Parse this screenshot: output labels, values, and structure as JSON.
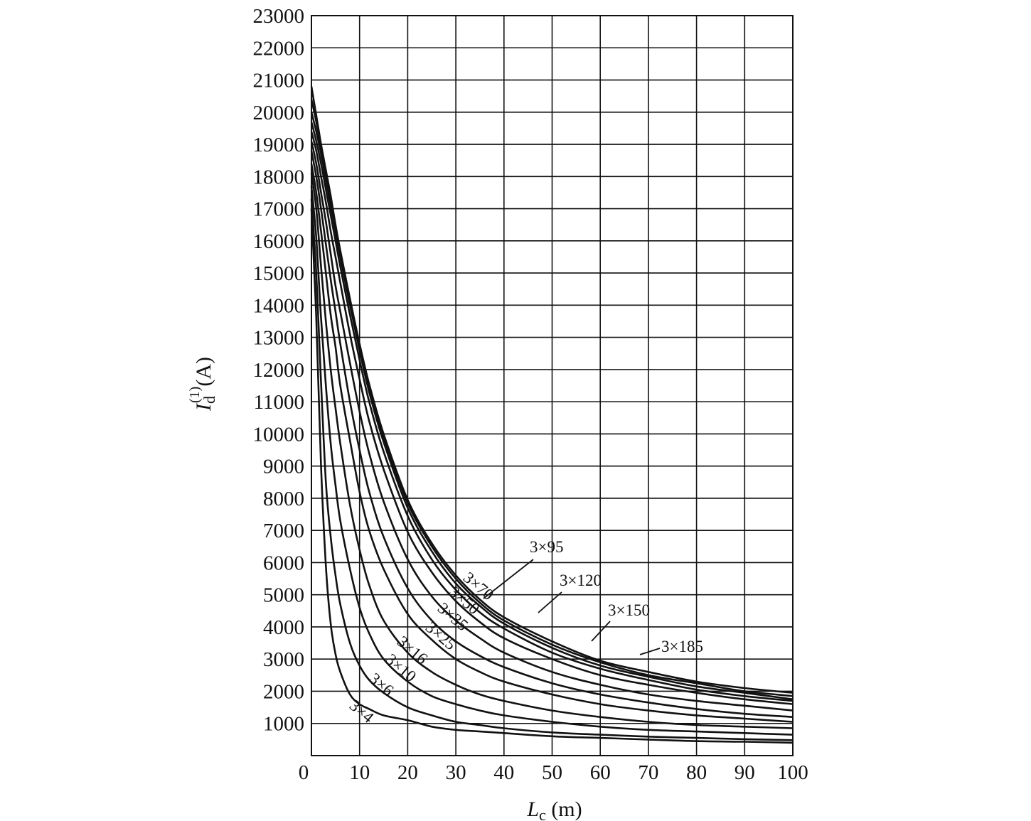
{
  "chart_data": {
    "type": "line",
    "xlabel": {
      "main": "L",
      "sub": "c",
      "unit": " (m)"
    },
    "ylabel": {
      "main": "I",
      "sub": "d",
      "sup": "(1)",
      "unit": "(A)"
    },
    "xlim": [
      0,
      100
    ],
    "ylim": [
      0,
      23000
    ],
    "grid": true,
    "x_ticks": [
      "0",
      "10",
      "20",
      "30",
      "40",
      "50",
      "60",
      "70",
      "80",
      "90",
      "100"
    ],
    "y_ticks": [
      "1000",
      "2000",
      "3000",
      "4000",
      "5000",
      "6000",
      "7000",
      "8000",
      "9000",
      "10000",
      "11000",
      "12000",
      "13000",
      "14000",
      "15000",
      "16000",
      "17000",
      "18000",
      "19000",
      "20000",
      "21000",
      "22000",
      "23000"
    ],
    "x": [
      0,
      1,
      2,
      3,
      4,
      5,
      6,
      8,
      10,
      12,
      15,
      20,
      25,
      30,
      35,
      40,
      50,
      60,
      70,
      80,
      90,
      100
    ],
    "series": [
      {
        "name": "3×4",
        "values": [
          17000,
          13600,
          9000,
          5900,
          4100,
          3150,
          2600,
          1900,
          1600,
          1450,
          1250,
          1100,
          900,
          800,
          750,
          700,
          600,
          550,
          500,
          450,
          430,
          400
        ]
      },
      {
        "name": "3×6",
        "values": [
          17300,
          15000,
          11600,
          8500,
          6800,
          5600,
          4700,
          3500,
          2800,
          2350,
          1950,
          1500,
          1250,
          1050,
          950,
          850,
          720,
          650,
          590,
          550,
          510,
          480
        ]
      },
      {
        "name": "3×10",
        "values": [
          17700,
          16100,
          13600,
          11500,
          9700,
          8400,
          7300,
          5800,
          4600,
          3800,
          3000,
          2300,
          1850,
          1600,
          1400,
          1250,
          1050,
          900,
          800,
          750,
          700,
          650
        ]
      },
      {
        "name": "3×16",
        "values": [
          18100,
          17000,
          15200,
          13500,
          12000,
          10800,
          9700,
          7800,
          6400,
          5300,
          4200,
          3200,
          2600,
          2200,
          1900,
          1700,
          1400,
          1200,
          1050,
          950,
          900,
          850
        ]
      },
      {
        "name": "3×25",
        "values": [
          18400,
          17500,
          16300,
          15000,
          13700,
          12700,
          11500,
          9800,
          8200,
          7000,
          5800,
          4400,
          3600,
          3000,
          2600,
          2300,
          1900,
          1600,
          1400,
          1250,
          1150,
          1050
        ]
      },
      {
        "name": "3×35",
        "values": [
          18800,
          18000,
          17000,
          15900,
          14800,
          13800,
          12800,
          11000,
          9500,
          8200,
          6800,
          5200,
          4200,
          3550,
          3100,
          2750,
          2250,
          1900,
          1650,
          1450,
          1300,
          1200
        ]
      },
      {
        "name": "3×50",
        "values": [
          19100,
          18400,
          17500,
          16600,
          15600,
          14600,
          13800,
          12200,
          10700,
          9400,
          7900,
          6100,
          4950,
          4200,
          3650,
          3200,
          2600,
          2200,
          1900,
          1700,
          1550,
          1400
        ]
      },
      {
        "name": "3×70",
        "values": [
          19400,
          18800,
          18000,
          17200,
          16300,
          15500,
          14700,
          13100,
          11700,
          10400,
          8900,
          6950,
          5700,
          4800,
          4150,
          3650,
          3000,
          2500,
          2200,
          1950,
          1750,
          1600
        ]
      },
      {
        "name": "3×95",
        "values": [
          19700,
          19100,
          18400,
          17600,
          16800,
          16000,
          15200,
          13700,
          12300,
          11000,
          9450,
          7450,
          6100,
          5150,
          4450,
          3950,
          3200,
          2700,
          2350,
          2050,
          1850,
          1700
        ]
      },
      {
        "name": "3×120",
        "values": [
          20000,
          19400,
          18700,
          17900,
          17100,
          16300,
          15500,
          14000,
          12600,
          11300,
          9750,
          7700,
          6350,
          5350,
          4650,
          4100,
          3350,
          2800,
          2450,
          2150,
          1950,
          1750
        ]
      },
      {
        "name": "3×150",
        "values": [
          20400,
          19700,
          18900,
          18100,
          17300,
          16400,
          15600,
          14100,
          12700,
          11450,
          9900,
          7850,
          6500,
          5500,
          4750,
          4200,
          3450,
          2900,
          2500,
          2250,
          2000,
          1850
        ]
      },
      {
        "name": "3×185",
        "values": [
          20800,
          19900,
          19000,
          18200,
          17400,
          16500,
          15700,
          14200,
          12800,
          11550,
          10000,
          7950,
          6600,
          5600,
          4850,
          4300,
          3550,
          2950,
          2600,
          2300,
          2100,
          1950
        ]
      }
    ]
  }
}
